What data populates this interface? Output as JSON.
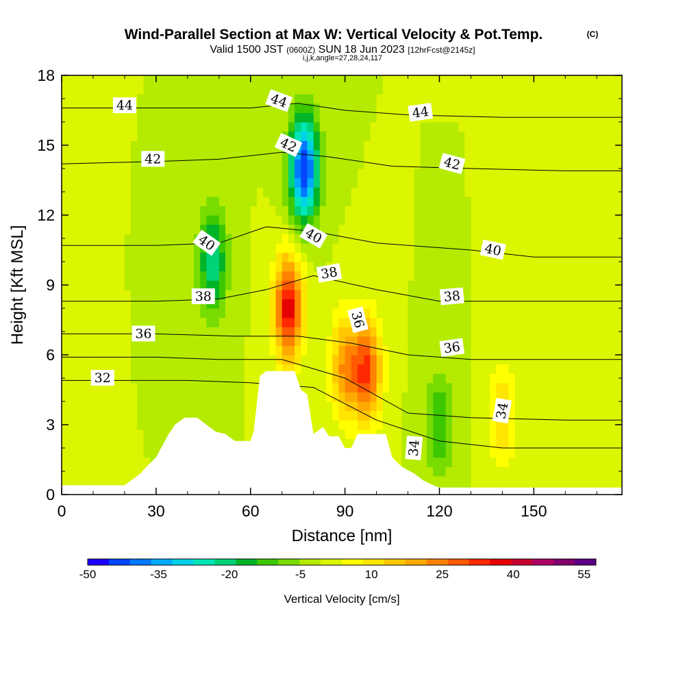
{
  "title": {
    "main": "Wind-Parallel Section at Max W: Vertical Velocity & Pot.Temp.",
    "copyright": "(C)",
    "valid_prefix": "Valid 1500 JST",
    "valid_utc": "(0600Z)",
    "valid_date": "SUN 18 Jun 2023",
    "forecast": "[12hrFcst@2145z]",
    "params": "i,j,k,angle=27,28,24,117"
  },
  "chart_data": {
    "type": "heatmap",
    "xlabel": "Distance [nm]",
    "ylabel": "Height [Kft MSL]",
    "xlim": [
      0,
      178
    ],
    "ylim": [
      0,
      18
    ],
    "x_ticks": [
      0,
      30,
      60,
      90,
      120,
      150
    ],
    "y_ticks": [
      0,
      3,
      6,
      9,
      12,
      15,
      18
    ],
    "x_tick_labels": [
      "0",
      "30",
      "60",
      "90",
      "120",
      "150"
    ],
    "y_tick_labels": [
      "0",
      "3",
      "6",
      "9",
      "12",
      "15",
      "18"
    ],
    "colorbar": {
      "label": "Vertical Velocity [cm/s]",
      "min": -50,
      "max": 57.5,
      "step": 5,
      "labels": [
        "-50",
        "-35",
        "-20",
        "-5",
        "10",
        "25",
        "40",
        "55"
      ],
      "label_values": [
        -50,
        -35,
        -20,
        -5,
        10,
        25,
        40,
        55
      ],
      "colors": [
        "#1a00ff",
        "#0046ff",
        "#0078ff",
        "#00aaff",
        "#00d2e6",
        "#00e6b4",
        "#00d278",
        "#00b428",
        "#3cc800",
        "#78dc00",
        "#b4eb00",
        "#dcf500",
        "#ffff00",
        "#ffe600",
        "#ffc800",
        "#ffaa00",
        "#ff8200",
        "#ff5a00",
        "#ff2800",
        "#e60000",
        "#c80032",
        "#aa0064",
        "#82006e",
        "#5a0082"
      ]
    },
    "vertical_velocity_features": [
      {
        "x": 48,
        "y": 10,
        "w": -20
      },
      {
        "x": 72,
        "y": 8,
        "w": 50
      },
      {
        "x": 77,
        "y": 14,
        "w": -45
      },
      {
        "x": 97,
        "y": 5.3,
        "w": 40
      },
      {
        "x": 90,
        "y": 5.5,
        "w": 30
      },
      {
        "x": 120,
        "y": 3,
        "w": -10
      },
      {
        "x": 140,
        "y": 3.5,
        "w": 20
      }
    ],
    "terrain": [
      [
        0,
        0.4
      ],
      [
        20,
        0.4
      ],
      [
        22,
        0.6
      ],
      [
        25,
        0.9
      ],
      [
        27,
        1.2
      ],
      [
        30,
        1.6
      ],
      [
        32,
        2.1
      ],
      [
        34,
        2.6
      ],
      [
        36,
        3.0
      ],
      [
        39,
        3.3
      ],
      [
        43,
        3.3
      ],
      [
        46,
        3.0
      ],
      [
        49,
        2.7
      ],
      [
        52,
        2.6
      ],
      [
        55,
        2.3
      ],
      [
        60,
        2.3
      ],
      [
        61,
        2.7
      ],
      [
        62,
        3.9
      ],
      [
        63,
        5.1
      ],
      [
        65,
        5.3
      ],
      [
        74,
        5.3
      ],
      [
        76,
        4.5
      ],
      [
        78,
        4.3
      ],
      [
        80,
        2.6
      ],
      [
        83,
        2.9
      ],
      [
        85,
        2.5
      ],
      [
        88,
        2.5
      ],
      [
        90,
        2.0
      ],
      [
        92,
        2.0
      ],
      [
        94,
        2.6
      ],
      [
        98,
        2.6
      ],
      [
        103,
        2.6
      ],
      [
        105,
        1.6
      ],
      [
        108,
        1.2
      ],
      [
        112,
        0.9
      ],
      [
        115,
        0.6
      ],
      [
        118,
        0.4
      ],
      [
        120,
        0.3
      ],
      [
        178,
        0.3
      ]
    ],
    "theta_isentropes": [
      {
        "label": "32",
        "points": [
          [
            0,
            4.9
          ],
          [
            20,
            4.9
          ],
          [
            40,
            4.9
          ],
          [
            60,
            4.8
          ],
          [
            80,
            4.6
          ],
          [
            100,
            3.2
          ],
          [
            120,
            2.3
          ],
          [
            140,
            2.0
          ],
          [
            178,
            2.0
          ]
        ]
      },
      {
        "label": "34",
        "points": [
          [
            0,
            5.9
          ],
          [
            30,
            5.9
          ],
          [
            50,
            5.8
          ],
          [
            70,
            5.8
          ],
          [
            90,
            5.0
          ],
          [
            110,
            3.5
          ],
          [
            130,
            3.3
          ],
          [
            160,
            3.2
          ],
          [
            178,
            3.2
          ]
        ]
      },
      {
        "label": "36",
        "points": [
          [
            0,
            6.9
          ],
          [
            30,
            6.9
          ],
          [
            55,
            6.8
          ],
          [
            75,
            6.8
          ],
          [
            92,
            6.5
          ],
          [
            110,
            6.0
          ],
          [
            130,
            5.8
          ],
          [
            160,
            5.8
          ],
          [
            178,
            5.8
          ]
        ]
      },
      {
        "label": "38",
        "points": [
          [
            0,
            8.3
          ],
          [
            30,
            8.3
          ],
          [
            50,
            8.4
          ],
          [
            65,
            8.8
          ],
          [
            80,
            9.4
          ],
          [
            100,
            8.8
          ],
          [
            120,
            8.3
          ],
          [
            150,
            8.3
          ],
          [
            178,
            8.3
          ]
        ]
      },
      {
        "label": "40",
        "points": [
          [
            0,
            10.7
          ],
          [
            30,
            10.7
          ],
          [
            50,
            10.8
          ],
          [
            65,
            11.5
          ],
          [
            80,
            11.3
          ],
          [
            100,
            10.8
          ],
          [
            130,
            10.5
          ],
          [
            150,
            10.2
          ],
          [
            178,
            10.2
          ]
        ]
      },
      {
        "label": "42",
        "points": [
          [
            0,
            14.2
          ],
          [
            30,
            14.3
          ],
          [
            50,
            14.4
          ],
          [
            70,
            14.7
          ],
          [
            85,
            14.5
          ],
          [
            105,
            14.1
          ],
          [
            130,
            14.0
          ],
          [
            160,
            13.9
          ],
          [
            178,
            13.9
          ]
        ]
      },
      {
        "label": "44",
        "points": [
          [
            0,
            16.6
          ],
          [
            30,
            16.6
          ],
          [
            60,
            16.6
          ],
          [
            75,
            16.8
          ],
          [
            90,
            16.5
          ],
          [
            110,
            16.3
          ],
          [
            140,
            16.2
          ],
          [
            178,
            16.2
          ]
        ]
      }
    ],
    "contour_labels": [
      {
        "text": "44",
        "x": 20,
        "y": 16.7,
        "angle": 0
      },
      {
        "text": "44",
        "x": 69,
        "y": 16.9,
        "angle": 20
      },
      {
        "text": "44",
        "x": 114,
        "y": 16.4,
        "angle": -8
      },
      {
        "text": "42",
        "x": 29,
        "y": 14.4,
        "angle": 0
      },
      {
        "text": "42",
        "x": 72,
        "y": 15.0,
        "angle": 25
      },
      {
        "text": "42",
        "x": 124,
        "y": 14.2,
        "angle": 15
      },
      {
        "text": "40",
        "x": 46,
        "y": 10.8,
        "angle": 35
      },
      {
        "text": "40",
        "x": 80,
        "y": 11.1,
        "angle": 30
      },
      {
        "text": "40",
        "x": 137,
        "y": 10.5,
        "angle": 12
      },
      {
        "text": "38",
        "x": 45,
        "y": 8.5,
        "angle": 0
      },
      {
        "text": "38",
        "x": 85,
        "y": 9.5,
        "angle": -10
      },
      {
        "text": "38",
        "x": 124,
        "y": 8.5,
        "angle": -5
      },
      {
        "text": "36",
        "x": 26,
        "y": 6.9,
        "angle": 0
      },
      {
        "text": "36",
        "x": 94,
        "y": 7.5,
        "angle": 75
      },
      {
        "text": "36",
        "x": 124,
        "y": 6.3,
        "angle": -8
      },
      {
        "text": "32",
        "x": 13,
        "y": 5.0,
        "angle": 0
      },
      {
        "text": "34",
        "x": 140,
        "y": 3.6,
        "angle": -80
      },
      {
        "text": "34",
        "x": 112,
        "y": 2.0,
        "angle": -85
      }
    ]
  }
}
